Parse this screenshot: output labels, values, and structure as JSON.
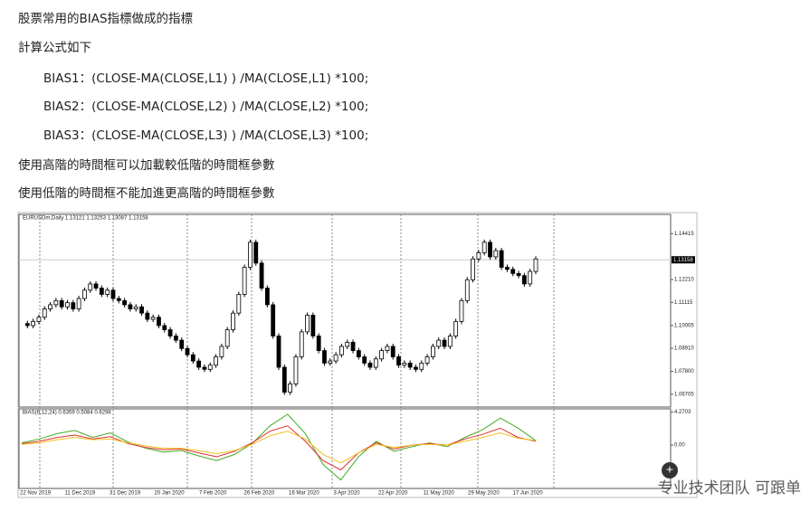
{
  "paragraphs": [
    "股票常用的BIAS指標做成的指標",
    "計算公式如下",
    "BIAS1：(CLOSE-MA(CLOSE,L1) ) /MA(CLOSE,L1) *100;",
    "BIAS2：(CLOSE-MA(CLOSE,L2) ) /MA(CLOSE,L2) *100;",
    "BIAS3：(CLOSE-MA(CLOSE,L3) ) /MA(CLOSE,L3) *100;",
    "使用高階的時間框可以加載較低階的時間框參數",
    "使用低階的時間框不能加進更高階的時間框參數"
  ],
  "chart": {
    "type": "candlestick",
    "header": "EURUSDm,Daily  1.13121 1.13253 1.13087 1.13158",
    "ylim": [
      1.0609,
      1.1534
    ],
    "yticks": [
      1.14415,
      1.1221,
      1.11115,
      1.10005,
      1.0891,
      1.078,
      1.06705
    ],
    "ytick_labels": [
      "1.14415",
      "1.12210",
      "1.11115",
      "1.10005",
      "1.08910",
      "1.07800",
      "1.06705"
    ],
    "current_price": 1.13158,
    "closes": [
      1.101,
      1.1,
      1.102,
      1.104,
      1.108,
      1.11,
      1.112,
      1.109,
      1.111,
      1.108,
      1.113,
      1.117,
      1.12,
      1.118,
      1.115,
      1.117,
      1.113,
      1.112,
      1.11,
      1.108,
      1.109,
      1.106,
      1.103,
      1.104,
      1.1,
      1.098,
      1.095,
      1.093,
      1.089,
      1.086,
      1.083,
      1.08,
      1.079,
      1.081,
      1.085,
      1.09,
      1.098,
      1.106,
      1.115,
      1.128,
      1.14,
      1.13,
      1.118,
      1.11,
      1.095,
      1.08,
      1.068,
      1.072,
      1.085,
      1.097,
      1.105,
      1.095,
      1.088,
      1.082,
      1.083,
      1.086,
      1.09,
      1.092,
      1.088,
      1.085,
      1.082,
      1.08,
      1.084,
      1.088,
      1.09,
      1.085,
      1.081,
      1.082,
      1.08,
      1.079,
      1.082,
      1.085,
      1.09,
      1.093,
      1.09,
      1.095,
      1.102,
      1.112,
      1.122,
      1.132,
      1.135,
      1.14,
      1.133,
      1.136,
      1.128,
      1.127,
      1.125,
      1.124,
      1.12,
      1.126,
      1.132
    ],
    "bias_header": "BIAS(6,12,24) 0.6359 0.5084 0.6298",
    "y2lim": [
      -5.6,
      4.7
    ],
    "y2ticks": [
      4.2703,
      {
        "value": 0,
        "label": "0.00"
      }
    ],
    "bias_series": [
      {
        "color": "#44aa22",
        "values": [
          0.3,
          0.8,
          1.5,
          1.9,
          1.0,
          1.6,
          0.4,
          -0.4,
          -0.9,
          -0.7,
          -1.4,
          -2.0,
          -1.2,
          0.2,
          2.5,
          4.0,
          1.5,
          -2.5,
          -4.5,
          -1.5,
          0.5,
          -0.8,
          -0.2,
          0.3,
          -0.2,
          1.0,
          2.0,
          3.5,
          2.2,
          0.6
        ]
      },
      {
        "color": "#e03030",
        "values": [
          0.2,
          0.5,
          1.0,
          1.3,
          0.8,
          1.1,
          0.2,
          -0.3,
          -0.6,
          -0.5,
          -1.0,
          -1.5,
          -0.8,
          0.3,
          1.8,
          2.5,
          0.5,
          -2.0,
          -3.2,
          -1.0,
          0.3,
          -0.5,
          0.0,
          0.2,
          0.0,
          0.8,
          1.4,
          2.2,
          1.0,
          0.5
        ]
      },
      {
        "color": "#f0c020",
        "values": [
          0.1,
          0.3,
          0.7,
          1.0,
          0.7,
          0.8,
          0.3,
          -0.1,
          -0.4,
          -0.4,
          -0.7,
          -1.1,
          -0.7,
          0.1,
          1.2,
          1.8,
          0.8,
          -1.2,
          -2.3,
          -1.0,
          0.1,
          -0.3,
          0.0,
          0.1,
          0.0,
          0.5,
          1.0,
          1.6,
          0.9,
          0.6
        ]
      }
    ],
    "x_labels": [
      "22 Nov 2019",
      "11 Dec 2019",
      "31 Dec 2019",
      "20 Jan 2020",
      "7 Feb 2020",
      "26 Feb 2020",
      "16 Mar 2020",
      "3 Apr 2020",
      "22 Apr 2020",
      "11 May 2020",
      "29 May 2020",
      "17 Jun 2020"
    ]
  },
  "watermark": "专业技术团队 可跟单"
}
